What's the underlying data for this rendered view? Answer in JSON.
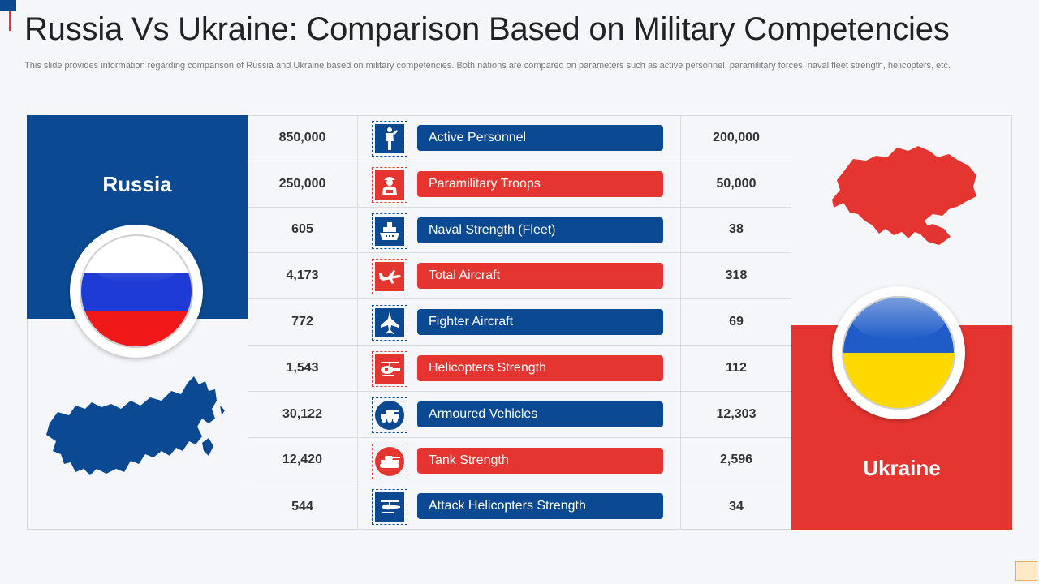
{
  "title": "Russia Vs Ukraine: Comparison Based on Military Competencies",
  "description": "This slide provides information regarding comparison of Russia and Ukraine based on military competencies. Both nations are compared on parameters such as active personnel, paramilitary forces, naval fleet strength, helicopters, etc.",
  "russia": {
    "name": "Russia",
    "color": "#0b4a92"
  },
  "ukraine": {
    "name": "Ukraine",
    "color": "#e53530"
  },
  "rows": [
    {
      "label": "Active Personnel",
      "russia": "850,000",
      "ukraine": "200,000",
      "icon": "soldier-icon",
      "accent": "blue"
    },
    {
      "label": "Paramilitary Troops",
      "russia": "250,000",
      "ukraine": "50,000",
      "icon": "troops-icon",
      "accent": "red"
    },
    {
      "label": "Naval Strength (Fleet)",
      "russia": "605",
      "ukraine": "38",
      "icon": "ship-icon",
      "accent": "blue"
    },
    {
      "label": "Total Aircraft",
      "russia": "4,173",
      "ukraine": "318",
      "icon": "airplane-icon",
      "accent": "red"
    },
    {
      "label": "Fighter Aircraft",
      "russia": "772",
      "ukraine": "69",
      "icon": "fighter-jet-icon",
      "accent": "blue"
    },
    {
      "label": "Helicopters Strength",
      "russia": "1,543",
      "ukraine": "112",
      "icon": "helicopter-icon",
      "accent": "red"
    },
    {
      "label": "Armoured Vehicles",
      "russia": "30,122",
      "ukraine": "12,303",
      "icon": "armoured-vehicle-icon",
      "accent": "blue"
    },
    {
      "label": "Tank Strength",
      "russia": "12,420",
      "ukraine": "2,596",
      "icon": "tank-icon",
      "accent": "red"
    },
    {
      "label": "Attack Helicopters Strength",
      "russia": "544",
      "ukraine": "34",
      "icon": "attack-helicopter-icon",
      "accent": "blue"
    }
  ]
}
